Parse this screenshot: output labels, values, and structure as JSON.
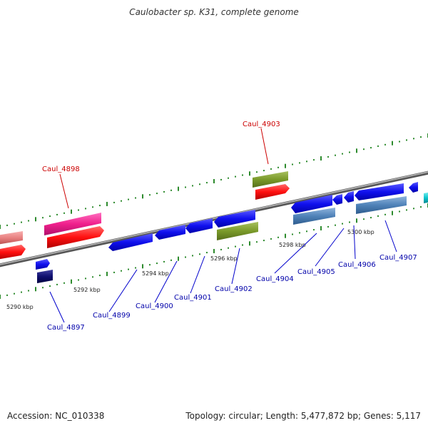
{
  "title": "Caulobacter sp. K31, complete genome",
  "footer": {
    "accession": "Accession: NC_010338",
    "summary": "Topology: circular; Length: 5,477,872 bp; Genes: 5,117"
  },
  "colors": {
    "backbone": "#888888",
    "tick": "#2e8b2e",
    "label_highlight": "#cc0000",
    "label_normal": "#0000aa",
    "callout_highlight": "#cc0000",
    "callout_normal": "#0000cc"
  },
  "ticks": [
    {
      "label": "5290 kbp"
    },
    {
      "label": "5292 kbp"
    },
    {
      "label": "5294 kbp"
    },
    {
      "label": "5296 kbp"
    },
    {
      "label": "5298 kbp"
    },
    {
      "label": "5300 kbp"
    }
  ],
  "genes": [
    {
      "name": "Caul_4897",
      "highlight": false
    },
    {
      "name": "Caul_4898",
      "highlight": true
    },
    {
      "name": "Caul_4899",
      "highlight": false
    },
    {
      "name": "Caul_4900",
      "highlight": false
    },
    {
      "name": "Caul_4901",
      "highlight": false
    },
    {
      "name": "Caul_4902",
      "highlight": false
    },
    {
      "name": "Caul_4903",
      "highlight": true
    },
    {
      "name": "Caul_4904",
      "highlight": false
    },
    {
      "name": "Caul_4905",
      "highlight": false
    },
    {
      "name": "Caul_4906",
      "highlight": false
    },
    {
      "name": "Caul_4907",
      "highlight": false
    }
  ]
}
